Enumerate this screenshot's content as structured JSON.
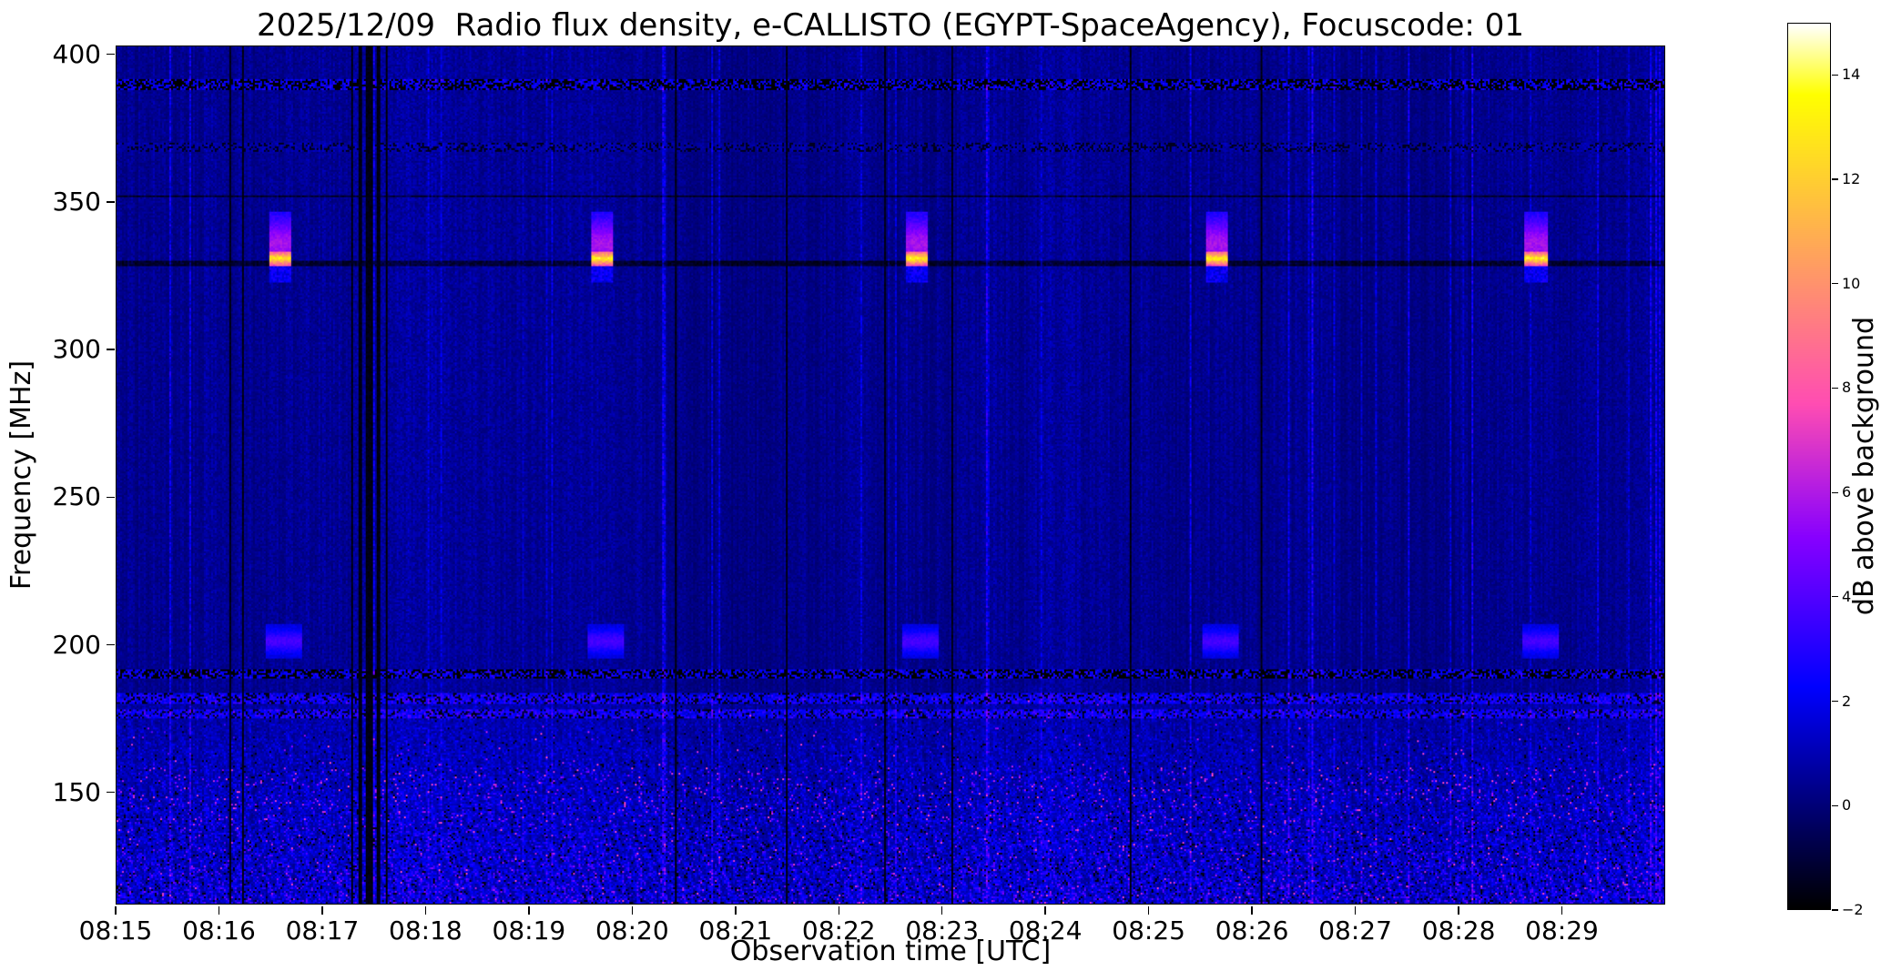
{
  "figure": {
    "background": "#ffffff"
  },
  "chart_data": {
    "type": "heatmap",
    "title": "2025/12/09  Radio flux density, e-CALLISTO (EGYPT-SpaceAgency), Focuscode: 01",
    "xlabel": "Observation time [UTC]",
    "ylabel": "Frequency [MHz]",
    "x_start_time": "08:15",
    "x_end_time": "08:30",
    "x_total_minutes": 15,
    "x_tick_labels": [
      "08:15",
      "08:16",
      "08:17",
      "08:18",
      "08:19",
      "08:20",
      "08:21",
      "08:22",
      "08:23",
      "08:24",
      "08:25",
      "08:26",
      "08:27",
      "08:28",
      "08:29"
    ],
    "x_tick_minutes": [
      0,
      1,
      2,
      3,
      4,
      5,
      6,
      7,
      8,
      9,
      10,
      11,
      12,
      13,
      14
    ],
    "y_tick_labels": [
      "400",
      "350",
      "300",
      "250",
      "200",
      "150"
    ],
    "y_tick_values": [
      400,
      350,
      300,
      250,
      200,
      150
    ],
    "ylim": [
      112,
      403
    ],
    "grid": false,
    "colorbar": {
      "label": "dB above background",
      "tick_labels": [
        "−2",
        "0",
        "2",
        "4",
        "6",
        "8",
        "10",
        "12",
        "14"
      ],
      "tick_values": [
        -2,
        0,
        2,
        4,
        6,
        8,
        10,
        12,
        14
      ],
      "clim": [
        -2,
        15
      ],
      "colormap": "gnuplot2"
    },
    "seed": 20251209,
    "features": {
      "background_db": 0.6,
      "calibration_bursts": {
        "center_mhz": 331,
        "halo_top_mhz": 347,
        "peak_db": 14.5,
        "times_min": [
          1.48,
          4.6,
          7.65,
          10.55,
          13.65
        ],
        "duration_min": 0.22,
        "sub_blob_mhz": 201
      },
      "rfi_bands": [
        {
          "mhz": 390,
          "halfwidth": 2.0,
          "style": "dark-speckle"
        },
        {
          "mhz": 369,
          "halfwidth": 1.5,
          "style": "dotted"
        },
        {
          "mhz": 352,
          "halfwidth": 0.4,
          "style": "dark-line"
        },
        {
          "mhz": 329.3,
          "halfwidth": 0.8,
          "style": "dark-line"
        },
        {
          "mhz": 190,
          "halfwidth": 1.3,
          "style": "dark-speckle"
        },
        {
          "mhz": 181.5,
          "halfwidth": 1.8,
          "style": "blue-dash"
        },
        {
          "mhz": 176.5,
          "halfwidth": 1.5,
          "style": "blue-dash"
        }
      ],
      "noisy_band": {
        "below_mhz": 183,
        "bright_spot_mhz": [
          140,
          158
        ]
      },
      "data_gaps": [
        {
          "t": 0.97,
          "w": 0.008
        },
        {
          "t": 1.1,
          "w": 0.01
        },
        {
          "t": 1.22,
          "w": 0.008
        },
        {
          "t": 1.34,
          "w": 0.006
        },
        {
          "t": 2.28,
          "w": 0.01
        },
        {
          "t": 2.36,
          "w": 0.012
        },
        {
          "t": 2.45,
          "w": 0.028
        },
        {
          "t": 2.54,
          "w": 0.014
        },
        {
          "t": 2.62,
          "w": 0.008
        },
        {
          "t": 5.42,
          "w": 0.006
        },
        {
          "t": 6.5,
          "w": 0.005
        },
        {
          "t": 7.45,
          "w": 0.012
        },
        {
          "t": 7.63,
          "w": 0.006
        },
        {
          "t": 8.1,
          "w": 0.008
        },
        {
          "t": 9.82,
          "w": 0.01
        },
        {
          "t": 11.1,
          "w": 0.006
        },
        {
          "t": 12.02,
          "w": 0.006
        },
        {
          "t": 13.45,
          "w": 0.005
        }
      ]
    }
  }
}
